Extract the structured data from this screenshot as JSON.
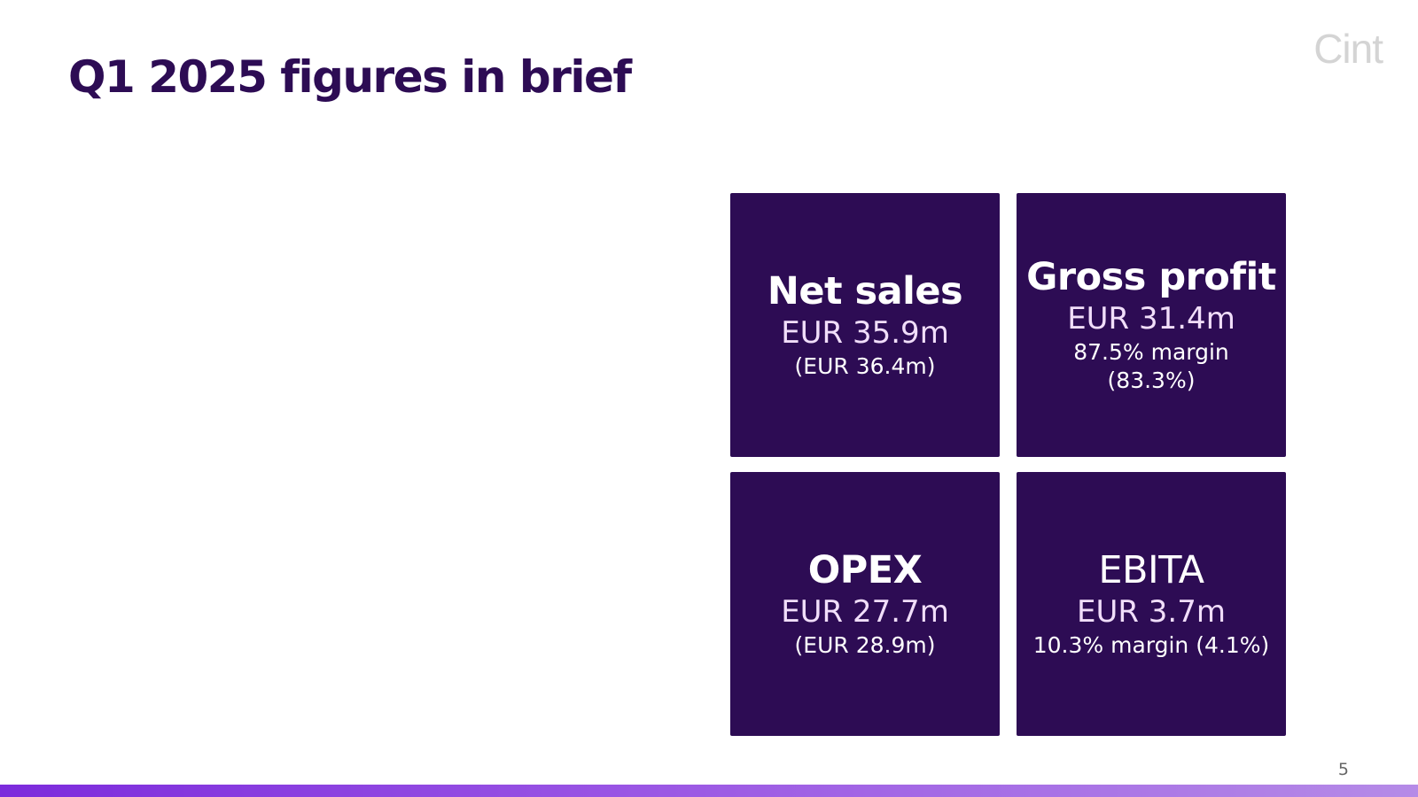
{
  "slide": {
    "title": "Q1 2025 figures in brief",
    "logo_text": "Cint",
    "page_number": "5"
  },
  "tiles": [
    {
      "heading": "Net sales",
      "value": "EUR 35.9m",
      "notes": [
        "(EUR 36.4m)"
      ]
    },
    {
      "heading": "Gross profit",
      "value": "EUR 31.4m",
      "notes": [
        "87.5% margin",
        "(83.3%)"
      ]
    },
    {
      "heading": "OPEX",
      "value": "EUR 27.7m",
      "notes": [
        "(EUR 28.9m)"
      ]
    },
    {
      "heading": "EBITA",
      "value": "EUR 3.7m",
      "notes": [
        "10.3% margin (4.1%)"
      ]
    }
  ],
  "colors": {
    "brand_purple": "#2d0c54",
    "value_text": "#f1defa",
    "bar_gradient_start": "#7c2bdc",
    "bar_gradient_end": "#b58be7"
  }
}
